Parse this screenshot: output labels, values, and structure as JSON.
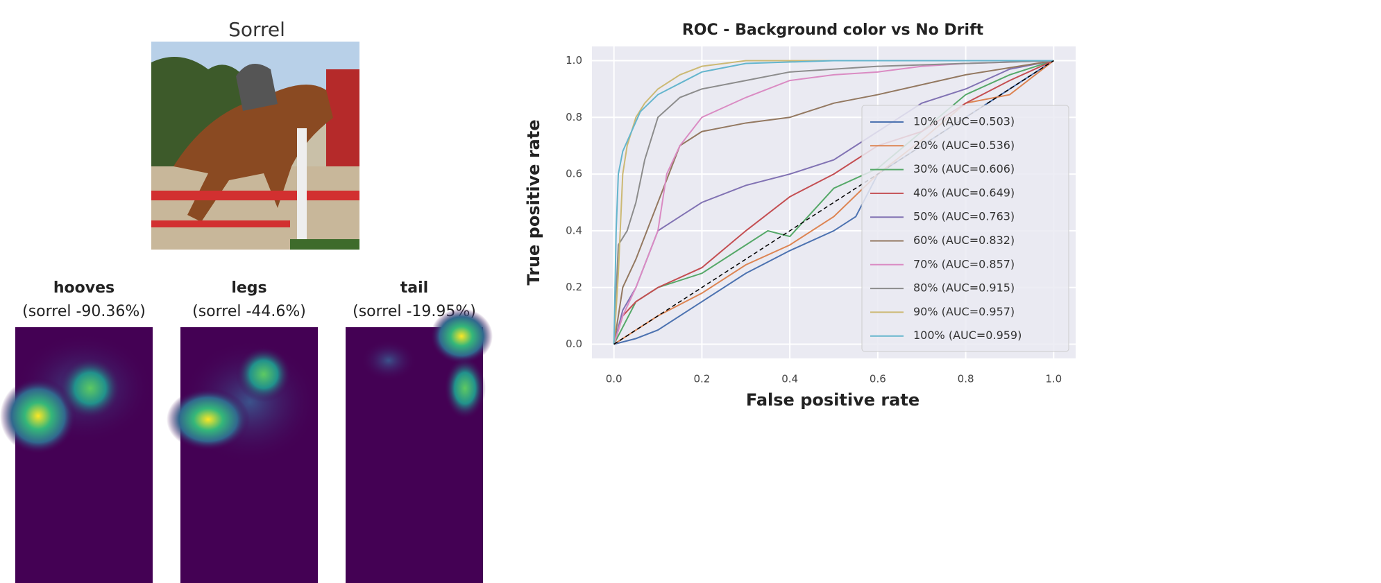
{
  "image_title": "Sorrel",
  "heatmaps": [
    {
      "label": "hooves",
      "score": "(sorrel -90.36%)"
    },
    {
      "label": "legs",
      "score": "(sorrel -44.6%)"
    },
    {
      "label": "tail",
      "score": "(sorrel -19.95%)"
    }
  ],
  "chart_data": {
    "type": "line",
    "title": "ROC - Background color vs No Drift",
    "x_label": "False positive rate",
    "y_label": "True positive rate",
    "xlim": [
      -0.05,
      1.05
    ],
    "ylim": [
      -0.05,
      1.05
    ],
    "xticks": [
      {
        "value": 0,
        "label": "0.0"
      },
      {
        "value": 0.2,
        "label": "0.2"
      },
      {
        "value": 0.4,
        "label": "0.4"
      },
      {
        "value": 0.6,
        "label": "0.6"
      },
      {
        "value": 0.8,
        "label": "0.8"
      },
      {
        "value": 1,
        "label": "1.0"
      }
    ],
    "yticks": [
      {
        "value": 0,
        "label": "0.0"
      },
      {
        "value": 0.2,
        "label": "0.2"
      },
      {
        "value": 0.4,
        "label": "0.4"
      },
      {
        "value": 0.6,
        "label": "0.6"
      },
      {
        "value": 0.8,
        "label": "0.8"
      },
      {
        "value": 1,
        "label": "1.0"
      }
    ],
    "grid": true,
    "legend": "lower right",
    "series": [
      {
        "name": "10% (AUC=0.503)",
        "color": "#4c72b0",
        "x": [
          0,
          0.05,
          0.1,
          0.2,
          0.3,
          0.4,
          0.5,
          0.55,
          0.6,
          0.7,
          0.8,
          0.9,
          1
        ],
        "values": [
          0,
          0.02,
          0.05,
          0.15,
          0.25,
          0.33,
          0.4,
          0.45,
          0.6,
          0.7,
          0.8,
          0.9,
          1
        ]
      },
      {
        "name": "20% (AUC=0.536)",
        "color": "#dd8452",
        "x": [
          0,
          0.1,
          0.2,
          0.3,
          0.4,
          0.5,
          0.6,
          0.7,
          0.8,
          0.9,
          1
        ],
        "values": [
          0,
          0.1,
          0.18,
          0.28,
          0.35,
          0.45,
          0.6,
          0.72,
          0.85,
          0.88,
          1
        ]
      },
      {
        "name": "30% (AUC=0.606)",
        "color": "#55a868",
        "x": [
          0,
          0.05,
          0.1,
          0.2,
          0.3,
          0.35,
          0.4,
          0.5,
          0.6,
          0.7,
          0.8,
          0.9,
          1
        ],
        "values": [
          0,
          0.15,
          0.2,
          0.25,
          0.35,
          0.4,
          0.38,
          0.55,
          0.62,
          0.75,
          0.88,
          0.95,
          1
        ]
      },
      {
        "name": "40% (AUC=0.649)",
        "color": "#c44e52",
        "x": [
          0,
          0.02,
          0.05,
          0.1,
          0.2,
          0.3,
          0.4,
          0.5,
          0.6,
          0.7,
          0.8,
          0.9,
          1
        ],
        "values": [
          0,
          0.1,
          0.15,
          0.2,
          0.27,
          0.4,
          0.52,
          0.6,
          0.7,
          0.75,
          0.85,
          0.93,
          1
        ]
      },
      {
        "name": "50% (AUC=0.763)",
        "color": "#8172b3",
        "x": [
          0,
          0.02,
          0.05,
          0.1,
          0.15,
          0.2,
          0.3,
          0.4,
          0.5,
          0.6,
          0.7,
          0.8,
          0.9,
          1
        ],
        "values": [
          0,
          0.12,
          0.2,
          0.4,
          0.45,
          0.5,
          0.56,
          0.6,
          0.65,
          0.75,
          0.85,
          0.9,
          0.97,
          1
        ]
      },
      {
        "name": "60% (AUC=0.832)",
        "color": "#937860",
        "x": [
          0,
          0.02,
          0.05,
          0.1,
          0.15,
          0.2,
          0.3,
          0.4,
          0.5,
          0.6,
          0.8,
          1
        ],
        "values": [
          0,
          0.2,
          0.3,
          0.5,
          0.7,
          0.75,
          0.78,
          0.8,
          0.85,
          0.88,
          0.95,
          1
        ]
      },
      {
        "name": "70% (AUC=0.857)",
        "color": "#da8bc3",
        "x": [
          0,
          0.02,
          0.05,
          0.1,
          0.12,
          0.15,
          0.2,
          0.3,
          0.4,
          0.5,
          0.6,
          0.7,
          0.8,
          1
        ],
        "values": [
          0,
          0.1,
          0.2,
          0.4,
          0.6,
          0.7,
          0.8,
          0.87,
          0.93,
          0.95,
          0.96,
          0.98,
          0.99,
          1
        ]
      },
      {
        "name": "80% (AUC=0.915)",
        "color": "#8c8c8c",
        "x": [
          0,
          0.01,
          0.03,
          0.05,
          0.07,
          0.1,
          0.15,
          0.2,
          0.3,
          0.4,
          0.6,
          0.8,
          1
        ],
        "values": [
          0,
          0.35,
          0.4,
          0.5,
          0.65,
          0.8,
          0.87,
          0.9,
          0.93,
          0.96,
          0.98,
          0.99,
          1
        ]
      },
      {
        "name": "90% (AUC=0.957)",
        "color": "#ccb974",
        "x": [
          0,
          0.01,
          0.02,
          0.03,
          0.05,
          0.07,
          0.1,
          0.15,
          0.2,
          0.3,
          0.5,
          1
        ],
        "values": [
          0,
          0.25,
          0.6,
          0.7,
          0.8,
          0.85,
          0.9,
          0.95,
          0.98,
          1,
          1,
          1
        ]
      },
      {
        "name": "100% (AUC=0.959)",
        "color": "#64b5cd",
        "x": [
          0,
          0.005,
          0.01,
          0.02,
          0.04,
          0.06,
          0.1,
          0.15,
          0.2,
          0.3,
          0.5,
          1
        ],
        "values": [
          0,
          0.4,
          0.6,
          0.68,
          0.75,
          0.82,
          0.88,
          0.92,
          0.96,
          0.99,
          1,
          1
        ]
      }
    ]
  }
}
